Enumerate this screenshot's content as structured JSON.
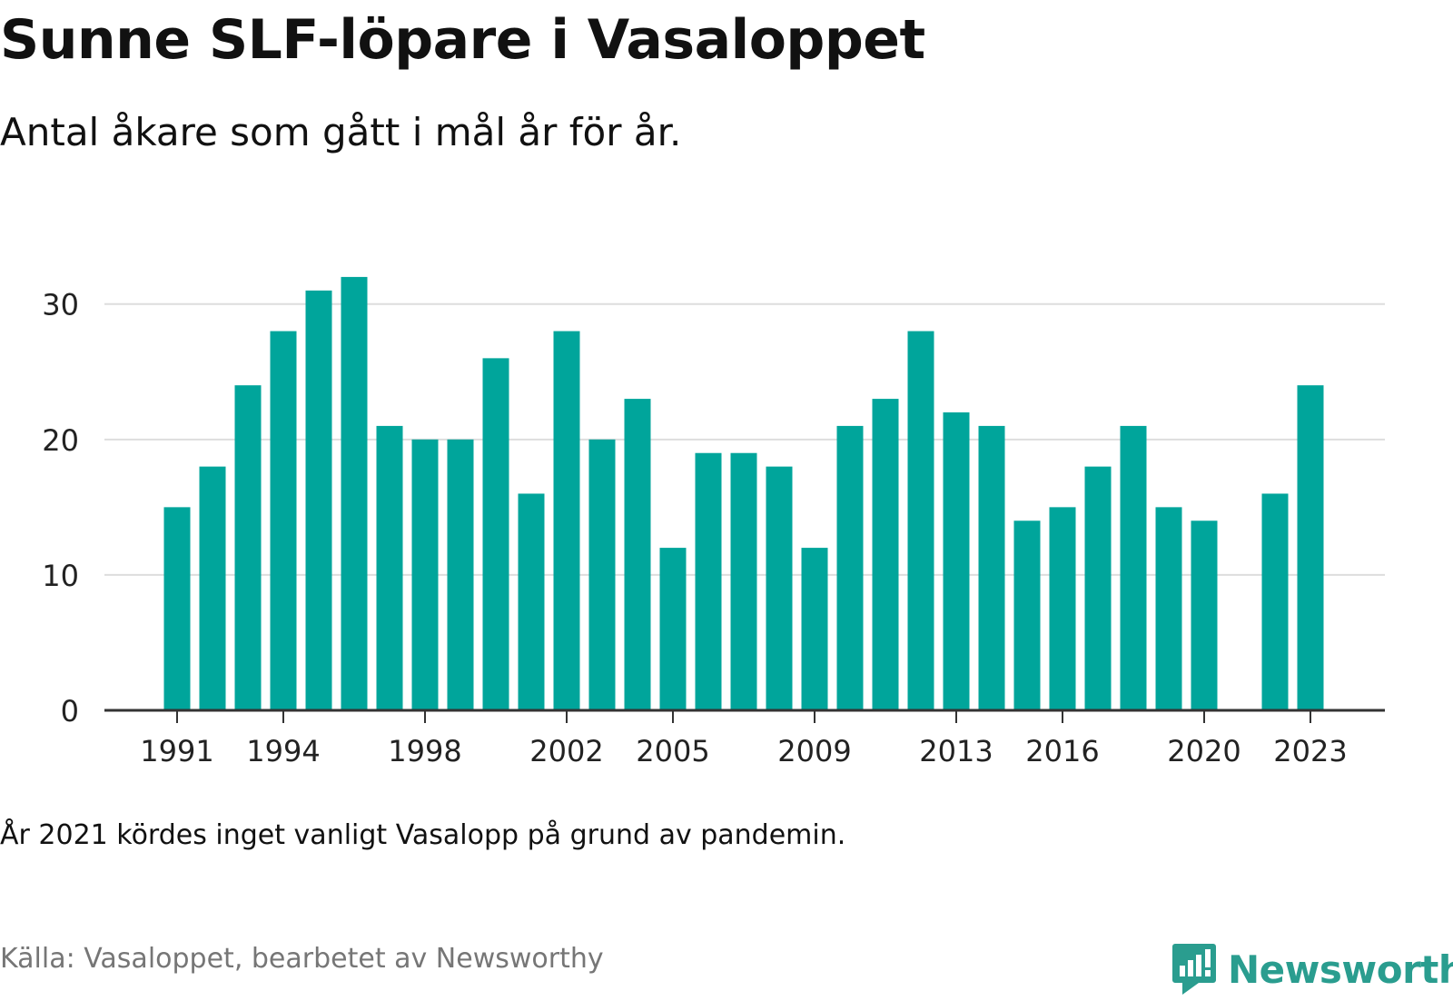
{
  "title": "Sunne SLF-löpare i Vasaloppet",
  "subtitle": "Antal åkare som gått i mål år för år.",
  "note": "År 2021 kördes inget vanligt Vasalopp på grund av pandemin.",
  "source": "Källa: Vasaloppet, bearbetet av Newsworthy",
  "logo": {
    "text": "Newsworthy",
    "icon": "newsworthy-logo-icon",
    "color": "#2a9d8f"
  },
  "chart_data": {
    "type": "bar",
    "title": "Sunne SLF-löpare i Vasaloppet",
    "subtitle": "Antal åkare som gått i mål år för år.",
    "xlabel": "",
    "ylabel": "",
    "categories": [
      1991,
      1992,
      1993,
      1994,
      1995,
      1996,
      1997,
      1998,
      1999,
      2000,
      2001,
      2002,
      2003,
      2004,
      2005,
      2006,
      2007,
      2008,
      2009,
      2010,
      2011,
      2012,
      2013,
      2014,
      2015,
      2016,
      2017,
      2018,
      2019,
      2020,
      2021,
      2022,
      2023
    ],
    "values": [
      15,
      18,
      24,
      28,
      31,
      32,
      21,
      20,
      20,
      26,
      16,
      28,
      20,
      23,
      12,
      19,
      19,
      18,
      12,
      21,
      23,
      28,
      22,
      21,
      14,
      15,
      18,
      21,
      15,
      14,
      null,
      16,
      24
    ],
    "ylim": [
      0,
      33
    ],
    "y_ticks": [
      0,
      10,
      20,
      30
    ],
    "x_ticks": [
      1991,
      1994,
      1998,
      2002,
      2005,
      2009,
      2013,
      2016,
      2020,
      2023
    ],
    "bar_color": "#00a59b",
    "grid": "horizontal",
    "legend": "none"
  }
}
